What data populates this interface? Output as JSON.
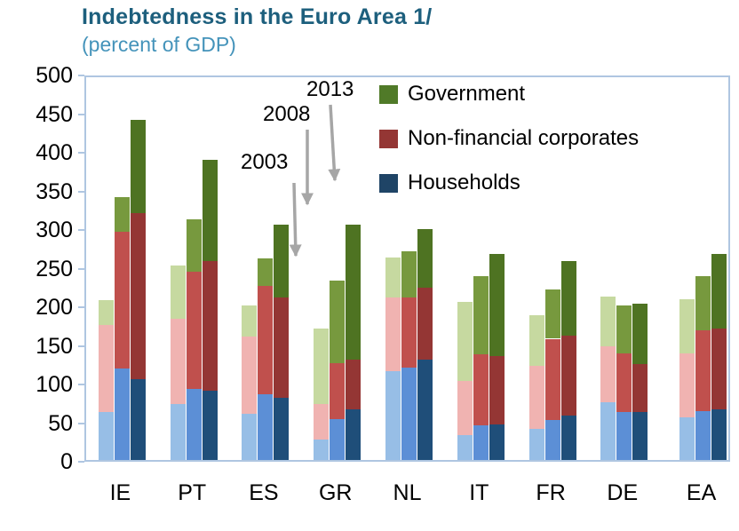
{
  "chart_data": {
    "type": "bar",
    "stacked": true,
    "title": "Indebtedness in the Euro Area 1/",
    "subtitle": "(percent of GDP)",
    "ylabel": "percent of GDP",
    "ylim": [
      0,
      500
    ],
    "y_ticks": [
      0,
      50,
      100,
      150,
      200,
      250,
      300,
      350,
      400,
      450,
      500
    ],
    "grid": false,
    "legend_position": "top-right",
    "categories": [
      "IE",
      "PT",
      "ES",
      "GR",
      "NL",
      "IT",
      "FR",
      "DE",
      "EA"
    ],
    "years": [
      "2003",
      "2008",
      "2013"
    ],
    "components": [
      "Households",
      "Non-financial corporates",
      "Government"
    ],
    "annotations": [
      "2003",
      "2008",
      "2013"
    ],
    "legend": [
      {
        "label": "Government",
        "color": "#507A28"
      },
      {
        "label": "Non-financial corporates",
        "color": "#943634"
      },
      {
        "label": "Households",
        "color": "#1F4466"
      }
    ],
    "colors": {
      "2003": [
        "#97BEE6",
        "#F0B3B1",
        "#C6D9A0"
      ],
      "2008": [
        "#5C8FD6",
        "#C0504D",
        "#77993E"
      ],
      "2013": [
        "#1F4E79",
        "#943634",
        "#4E7322"
      ]
    },
    "values": {
      "IE": {
        "2003": [
          62,
          113,
          32
        ],
        "2008": [
          118,
          177,
          45
        ],
        "2013": [
          105,
          215,
          120
        ]
      },
      "PT": {
        "2003": [
          73,
          110,
          69
        ],
        "2008": [
          92,
          152,
          68
        ],
        "2013": [
          90,
          168,
          130
        ]
      },
      "ES": {
        "2003": [
          60,
          100,
          40
        ],
        "2008": [
          85,
          140,
          36
        ],
        "2013": [
          80,
          130,
          95
        ]
      },
      "GR": {
        "2003": [
          27,
          45,
          98
        ],
        "2008": [
          53,
          72,
          107
        ],
        "2013": [
          65,
          65,
          175
        ]
      },
      "NL": {
        "2003": [
          115,
          95,
          52
        ],
        "2008": [
          120,
          90,
          60
        ],
        "2013": [
          130,
          93,
          76
        ]
      },
      "IT": {
        "2003": [
          32,
          70,
          103
        ],
        "2008": [
          45,
          92,
          101
        ],
        "2013": [
          46,
          89,
          132
        ]
      },
      "FR": {
        "2003": [
          40,
          82,
          65
        ],
        "2008": [
          52,
          105,
          64
        ],
        "2013": [
          57,
          104,
          97
        ]
      },
      "DE": {
        "2003": [
          75,
          72,
          64
        ],
        "2008": [
          62,
          76,
          62
        ],
        "2013": [
          62,
          62,
          78
        ]
      },
      "EA": {
        "2003": [
          55,
          83,
          70
        ],
        "2008": [
          63,
          105,
          70
        ],
        "2013": [
          66,
          104,
          97
        ]
      }
    }
  }
}
